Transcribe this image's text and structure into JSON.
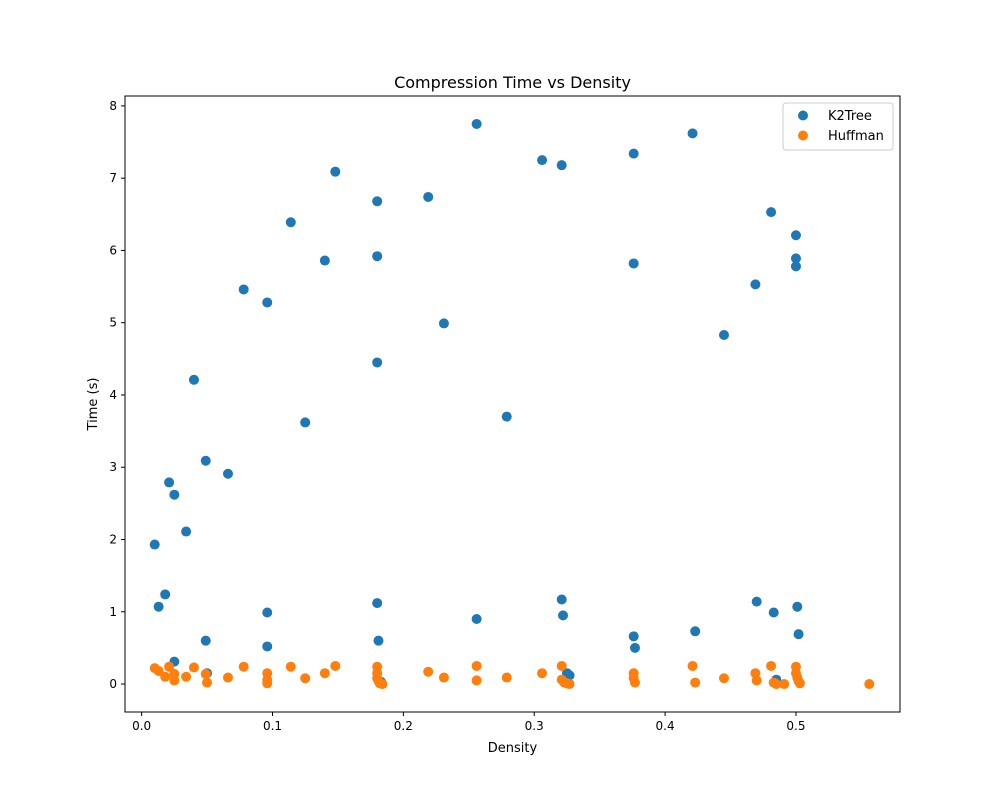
{
  "chart_data": {
    "type": "scatter",
    "title": "Compression Time vs Density",
    "xlabel": "Density",
    "ylabel": "Time (s)",
    "xlim": [
      -0.0127,
      0.5795
    ],
    "ylim": [
      -0.387,
      8.137
    ],
    "xticks": [
      0.0,
      0.1,
      0.2,
      0.3,
      0.4,
      0.5
    ],
    "xtick_labels": [
      "0.0",
      "0.1",
      "0.2",
      "0.3",
      "0.4",
      "0.5"
    ],
    "yticks": [
      0,
      1,
      2,
      3,
      4,
      5,
      6,
      7,
      8
    ],
    "ytick_labels": [
      "0",
      "1",
      "2",
      "3",
      "4",
      "5",
      "6",
      "7",
      "8"
    ],
    "grid": false,
    "legend_position": "top-right",
    "series": [
      {
        "name": "K2Tree",
        "color": "#1f77b4",
        "points": [
          [
            0.01,
            1.93
          ],
          [
            0.013,
            1.07
          ],
          [
            0.018,
            1.24
          ],
          [
            0.021,
            2.79
          ],
          [
            0.025,
            2.62
          ],
          [
            0.025,
            0.31
          ],
          [
            0.034,
            2.11
          ],
          [
            0.04,
            4.21
          ],
          [
            0.049,
            3.09
          ],
          [
            0.049,
            0.6
          ],
          [
            0.05,
            0.15
          ],
          [
            0.066,
            2.91
          ],
          [
            0.078,
            5.46
          ],
          [
            0.096,
            5.28
          ],
          [
            0.096,
            0.99
          ],
          [
            0.096,
            0.52
          ],
          [
            0.114,
            6.39
          ],
          [
            0.125,
            3.62
          ],
          [
            0.14,
            5.86
          ],
          [
            0.148,
            7.09
          ],
          [
            0.18,
            6.68
          ],
          [
            0.18,
            5.92
          ],
          [
            0.18,
            4.45
          ],
          [
            0.18,
            1.12
          ],
          [
            0.181,
            0.6
          ],
          [
            0.183,
            0.03
          ],
          [
            0.219,
            6.74
          ],
          [
            0.231,
            4.99
          ],
          [
            0.256,
            7.75
          ],
          [
            0.256,
            0.9
          ],
          [
            0.279,
            3.7
          ],
          [
            0.306,
            7.25
          ],
          [
            0.321,
            7.18
          ],
          [
            0.321,
            1.17
          ],
          [
            0.322,
            0.95
          ],
          [
            0.325,
            0.15
          ],
          [
            0.327,
            0.12
          ],
          [
            0.376,
            7.34
          ],
          [
            0.376,
            5.82
          ],
          [
            0.376,
            0.66
          ],
          [
            0.377,
            0.5
          ],
          [
            0.421,
            7.62
          ],
          [
            0.423,
            0.73
          ],
          [
            0.445,
            4.83
          ],
          [
            0.469,
            5.53
          ],
          [
            0.47,
            1.14
          ],
          [
            0.481,
            6.53
          ],
          [
            0.483,
            0.99
          ],
          [
            0.485,
            0.06
          ],
          [
            0.5,
            6.21
          ],
          [
            0.5,
            5.89
          ],
          [
            0.5,
            5.78
          ],
          [
            0.501,
            1.07
          ],
          [
            0.502,
            0.69
          ]
        ]
      },
      {
        "name": "Huffman",
        "color": "#ff7f0e",
        "points": [
          [
            0.01,
            0.22
          ],
          [
            0.013,
            0.18
          ],
          [
            0.018,
            0.1
          ],
          [
            0.021,
            0.24
          ],
          [
            0.025,
            0.14
          ],
          [
            0.025,
            0.05
          ],
          [
            0.034,
            0.1
          ],
          [
            0.04,
            0.23
          ],
          [
            0.049,
            0.14
          ],
          [
            0.05,
            0.02
          ],
          [
            0.066,
            0.09
          ],
          [
            0.078,
            0.24
          ],
          [
            0.096,
            0.15
          ],
          [
            0.096,
            0.06
          ],
          [
            0.096,
            0.01
          ],
          [
            0.114,
            0.24
          ],
          [
            0.125,
            0.08
          ],
          [
            0.14,
            0.15
          ],
          [
            0.148,
            0.25
          ],
          [
            0.18,
            0.24
          ],
          [
            0.18,
            0.15
          ],
          [
            0.18,
            0.08
          ],
          [
            0.181,
            0.04
          ],
          [
            0.182,
            0.01
          ],
          [
            0.184,
            0.0
          ],
          [
            0.219,
            0.17
          ],
          [
            0.231,
            0.09
          ],
          [
            0.256,
            0.25
          ],
          [
            0.256,
            0.05
          ],
          [
            0.279,
            0.09
          ],
          [
            0.306,
            0.15
          ],
          [
            0.321,
            0.25
          ],
          [
            0.321,
            0.06
          ],
          [
            0.323,
            0.02
          ],
          [
            0.325,
            0.01
          ],
          [
            0.327,
            0.0
          ],
          [
            0.376,
            0.15
          ],
          [
            0.376,
            0.08
          ],
          [
            0.377,
            0.02
          ],
          [
            0.421,
            0.25
          ],
          [
            0.423,
            0.02
          ],
          [
            0.445,
            0.08
          ],
          [
            0.469,
            0.15
          ],
          [
            0.47,
            0.05
          ],
          [
            0.481,
            0.25
          ],
          [
            0.483,
            0.02
          ],
          [
            0.485,
            0.0
          ],
          [
            0.491,
            0.0
          ],
          [
            0.5,
            0.24
          ],
          [
            0.5,
            0.15
          ],
          [
            0.501,
            0.09
          ],
          [
            0.502,
            0.04
          ],
          [
            0.503,
            0.01
          ],
          [
            0.556,
            0.0
          ]
        ]
      }
    ]
  }
}
